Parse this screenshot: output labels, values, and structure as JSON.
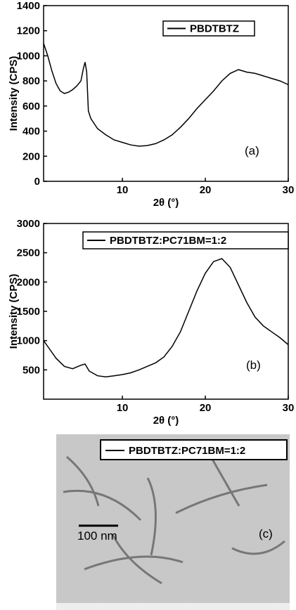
{
  "chart_data": [
    {
      "type": "line",
      "annotation": "(a)",
      "x_label": "2θ (°)",
      "y_label": "Intensity (CPS)",
      "x": [
        0.5,
        1,
        1.5,
        2,
        2.5,
        3,
        3.5,
        4,
        4.5,
        5,
        5.3,
        5.5,
        5.7,
        5.9,
        6.2,
        7,
        8,
        9,
        10,
        11,
        12,
        13,
        14,
        15,
        16,
        17,
        18,
        19,
        20,
        21,
        22,
        23,
        24,
        25,
        26,
        27,
        28,
        29,
        30
      ],
      "series": [
        {
          "name": "PBDTBTZ",
          "color": "#000000",
          "values": [
            1100,
            1000,
            880,
            780,
            720,
            700,
            710,
            730,
            760,
            800,
            900,
            950,
            870,
            560,
            500,
            420,
            370,
            330,
            310,
            290,
            280,
            285,
            300,
            330,
            370,
            430,
            500,
            580,
            650,
            720,
            800,
            860,
            890,
            870,
            860,
            840,
            820,
            800,
            770
          ]
        }
      ],
      "xlim": [
        0.5,
        30
      ],
      "xticks": [
        10,
        20,
        30
      ],
      "ylim": [
        0,
        1400
      ],
      "yticks": [
        0,
        200,
        400,
        600,
        800,
        1000,
        1200,
        1400
      ]
    },
    {
      "type": "line",
      "annotation": "(b)",
      "x_label": "2θ (°)",
      "y_label": "Intensity (CPS)",
      "x": [
        0.5,
        1,
        2,
        3,
        4,
        5,
        5.5,
        6,
        7,
        8,
        9,
        10,
        11,
        12,
        13,
        14,
        15,
        16,
        17,
        18,
        19,
        20,
        21,
        22,
        23,
        24,
        25,
        26,
        27,
        28,
        29,
        30
      ],
      "series": [
        {
          "name": "PBDTBTZ:PC71BM=1:2",
          "color": "#000000",
          "values": [
            1000,
            900,
            700,
            560,
            520,
            580,
            600,
            480,
            400,
            380,
            400,
            420,
            450,
            500,
            560,
            620,
            720,
            900,
            1150,
            1500,
            1850,
            2150,
            2350,
            2400,
            2250,
            1950,
            1650,
            1400,
            1250,
            1150,
            1050,
            930
          ]
        }
      ],
      "xlim": [
        0.5,
        30
      ],
      "xticks": [
        10,
        20,
        30
      ],
      "ylim": [
        0,
        3000
      ],
      "yticks": [
        500,
        1000,
        1500,
        2000,
        2500,
        3000
      ]
    }
  ],
  "image_panel": {
    "legend": "PBDTBTZ:PC71BM=1:2",
    "scale_bar": "100 nm",
    "panel_label": "(c)"
  }
}
